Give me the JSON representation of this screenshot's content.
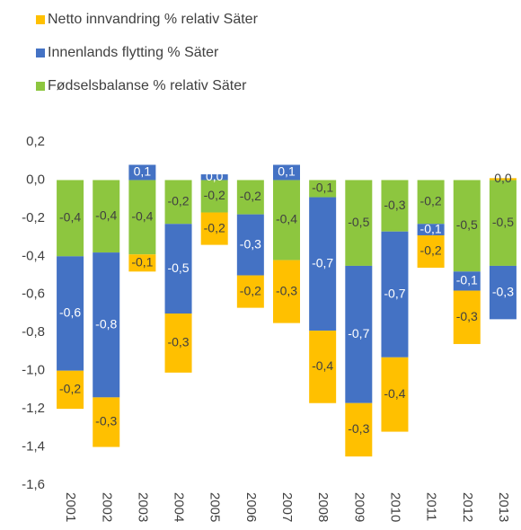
{
  "chart_data": {
    "type": "stacked_bar",
    "categories": [
      "2001",
      "2002",
      "2003",
      "2004",
      "2005",
      "2006",
      "2007",
      "2008",
      "2009",
      "2010",
      "2011",
      "2012",
      "2013"
    ],
    "series": [
      {
        "name": "Fødselsbalanse % relativ Säter",
        "color": "#8dc63f",
        "values": [
          -0.4,
          -0.38,
          -0.39,
          -0.23,
          -0.17,
          -0.18,
          -0.42,
          -0.09,
          -0.45,
          -0.27,
          -0.23,
          -0.48,
          -0.45
        ],
        "value_labels": [
          "-0,4",
          "-0,4",
          "-0,4",
          "-0,2",
          "-0,2",
          "-0,2",
          "-0,4",
          "-0,1",
          "-0,5",
          "-0,3",
          "-0,2",
          "-0,5",
          "-0,5"
        ]
      },
      {
        "name": "Innenlands flytting % Säter",
        "color": "#4472c4",
        "values": [
          -0.6,
          -0.76,
          0.08,
          -0.47,
          0.03,
          -0.32,
          0.08,
          -0.7,
          -0.72,
          -0.66,
          -0.06,
          -0.1,
          -0.28
        ],
        "value_labels": [
          "-0,6",
          "-0,8",
          "0,1",
          "-0,5",
          "0,0",
          "-0,3",
          "0,1",
          "-0,7",
          "-0,7",
          "-0,7",
          "-0,1",
          "-0,1",
          "-0,3"
        ]
      },
      {
        "name": "Netto innvandring % relativ Säter",
        "color": "#ffc000",
        "values": [
          -0.2,
          -0.26,
          -0.09,
          -0.31,
          -0.17,
          -0.17,
          -0.33,
          -0.38,
          -0.28,
          -0.39,
          -0.17,
          -0.28,
          0.01
        ],
        "value_labels": [
          "-0,2",
          "-0,3",
          "-0,1",
          "-0,3",
          "-0,2",
          "-0,2",
          "-0,3",
          "-0,4",
          "-0,3",
          "-0,4",
          "-0,2",
          "-0,3",
          "0,0"
        ]
      }
    ],
    "ylim": [
      -1.6,
      0.2
    ],
    "yticks": [
      {
        "value": 0.2,
        "label": "0,2"
      },
      {
        "value": 0,
        "label": "0,0"
      },
      {
        "value": -0.2,
        "label": "-0,2"
      },
      {
        "value": -0.4,
        "label": "-0,4"
      },
      {
        "value": -0.6,
        "label": "-0,6"
      },
      {
        "value": -0.8,
        "label": "-0,8"
      },
      {
        "value": -1.0,
        "label": "-1,0"
      },
      {
        "value": -1.2,
        "label": "-1,2"
      },
      {
        "value": -1.4,
        "label": "-1,4"
      },
      {
        "value": -1.6,
        "label": "-1,6"
      }
    ],
    "grid": false
  }
}
